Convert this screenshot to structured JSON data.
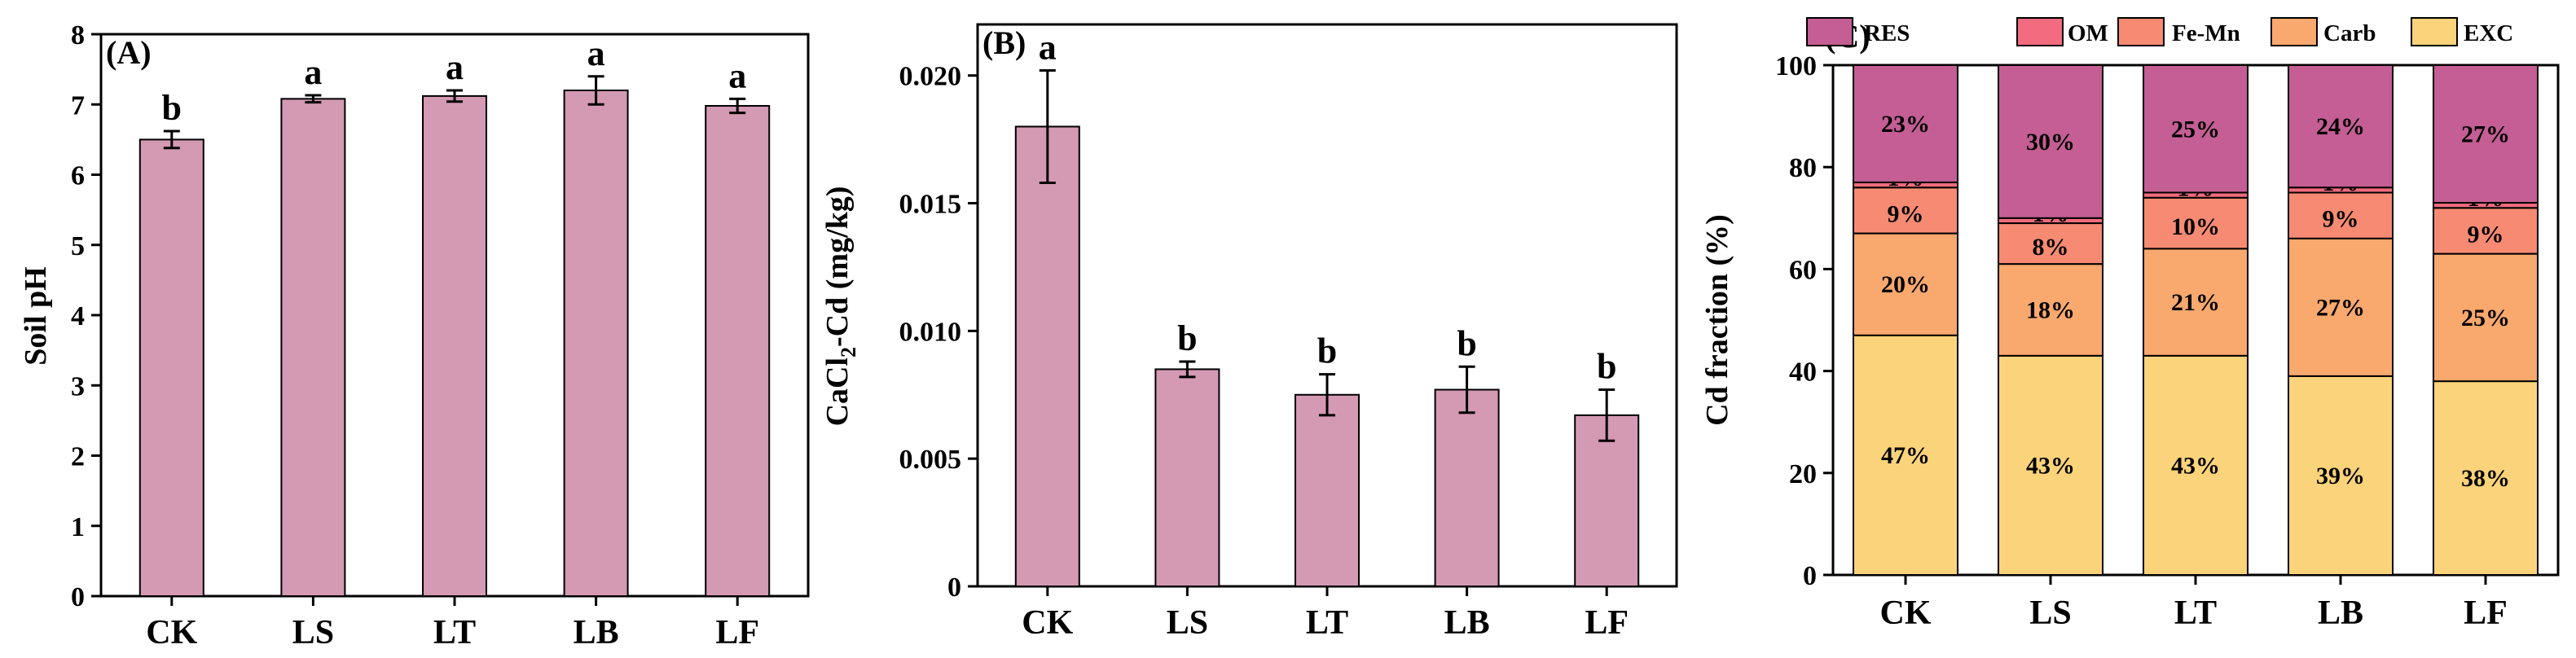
{
  "colors": {
    "bar": "#D499B3",
    "RES": "#C45E94",
    "OM": "#F26B7E",
    "Fe-Mn": "#F78A73",
    "Carb": "#F9A86E",
    "EXC": "#FBD37A"
  },
  "chart_data": [
    {
      "type": "bar",
      "panel": "(A)",
      "categories": [
        "CK",
        "LS",
        "LT",
        "LB",
        "LF"
      ],
      "values": [
        6.5,
        7.08,
        7.12,
        7.2,
        6.98
      ],
      "errors": [
        0.12,
        0.05,
        0.08,
        0.2,
        0.1
      ],
      "significance": [
        "b",
        "a",
        "a",
        "a",
        "a"
      ],
      "ylabel": "Soil pH",
      "ylim": [
        0,
        8
      ],
      "yticks": [
        0,
        1,
        2,
        3,
        4,
        5,
        6,
        7,
        8
      ],
      "ytick_labels": [
        "0",
        "1",
        "2",
        "3",
        "4",
        "5",
        "6",
        "7",
        "8"
      ]
    },
    {
      "type": "bar",
      "panel": "(B)",
      "categories": [
        "CK",
        "LS",
        "LT",
        "LB",
        "LF"
      ],
      "values": [
        0.018,
        0.0085,
        0.0075,
        0.0077,
        0.0067
      ],
      "errors": [
        0.0022,
        0.0003,
        0.0008,
        0.0009,
        0.001
      ],
      "significance": [
        "a",
        "b",
        "b",
        "b",
        "b"
      ],
      "ylabel_parts": [
        "CaCl",
        "2",
        "-Cd (mg/kg)"
      ],
      "ylim": [
        0,
        0.022
      ],
      "yticks": [
        0,
        0.005,
        0.01,
        0.015,
        0.02
      ],
      "ytick_labels": [
        "0",
        "0.005",
        "0.010",
        "0.015",
        "0.020"
      ]
    },
    {
      "type": "stacked-bar",
      "panel": "(C)",
      "categories": [
        "CK",
        "LS",
        "LT",
        "LB",
        "LF"
      ],
      "ylabel": "Cd  fraction (%)",
      "ylim": [
        0,
        100
      ],
      "yticks": [
        0,
        20,
        40,
        60,
        80,
        100
      ],
      "ytick_labels": [
        "0",
        "20",
        "40",
        "60",
        "80",
        "100"
      ],
      "legend": [
        "RES",
        "OM",
        "Fe-Mn",
        "Carb",
        "EXC"
      ],
      "legend_position": "top",
      "series": [
        {
          "name": "EXC",
          "values": [
            47,
            43,
            43,
            39,
            38
          ],
          "labels": [
            "47%",
            "43%",
            "43%",
            "39%",
            "38%"
          ]
        },
        {
          "name": "Carb",
          "values": [
            20,
            18,
            21,
            27,
            25
          ],
          "labels": [
            "20%",
            "18%",
            "21%",
            "27%",
            "25%"
          ]
        },
        {
          "name": "Fe-Mn",
          "values": [
            9,
            8,
            10,
            9,
            9
          ],
          "labels": [
            "9%",
            "8%",
            "10%",
            "9%",
            "9%"
          ]
        },
        {
          "name": "OM",
          "values": [
            1,
            1,
            1,
            1,
            1
          ],
          "labels": [
            "1%",
            "1%",
            "1%",
            "1%",
            "1%"
          ]
        },
        {
          "name": "RES",
          "values": [
            23,
            30,
            25,
            24,
            27
          ],
          "labels": [
            "23%",
            "30%",
            "25%",
            "24%",
            "27%"
          ]
        }
      ]
    }
  ]
}
